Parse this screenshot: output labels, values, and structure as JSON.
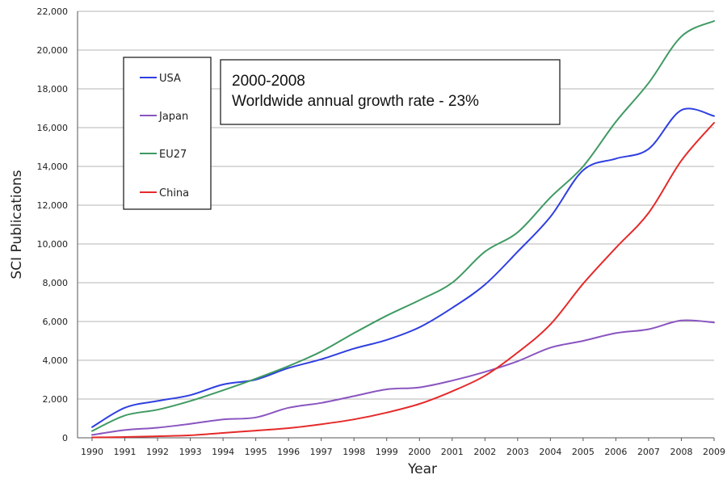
{
  "chart_data": {
    "type": "line",
    "xlabel": "Year",
    "ylabel": "SCI  Publications",
    "ylim": [
      0,
      22000
    ],
    "yticks": [
      0,
      2000,
      4000,
      6000,
      8000,
      10000,
      12000,
      14000,
      16000,
      18000,
      20000,
      22000
    ],
    "ytick_labels": [
      "0",
      "2,000",
      "4,000",
      "6,000",
      "8,000",
      "10,000",
      "12,000",
      "14,000",
      "16,000",
      "18,000",
      "20,000",
      "22,000"
    ],
    "x": [
      1990,
      1991,
      1992,
      1993,
      1994,
      1995,
      1996,
      1997,
      1998,
      1999,
      2000,
      2001,
      2002,
      2003,
      2004,
      2005,
      2006,
      2007,
      2008,
      2009
    ],
    "xtick_labels": [
      "1990",
      "1991",
      "1992",
      "1993",
      "1994",
      "1995",
      "1996",
      "1997",
      "1998",
      "1999",
      "2000",
      "2001",
      "2002",
      "2003",
      "2004",
      "2005",
      "2006",
      "2007",
      "2008",
      "2009"
    ],
    "grid": "horizontal",
    "legend_position": "top-left",
    "series": [
      {
        "name": "USA",
        "color": "#2f3fe0",
        "values": [
          550,
          1550,
          1900,
          2200,
          2750,
          3000,
          3600,
          4050,
          4600,
          5050,
          5700,
          6700,
          7900,
          9600,
          11400,
          13800,
          14400,
          14900,
          16900,
          16600
        ]
      },
      {
        "name": "Japan",
        "color": "#8a55c0",
        "values": [
          150,
          400,
          520,
          720,
          950,
          1050,
          1550,
          1800,
          2150,
          2500,
          2600,
          2950,
          3400,
          3950,
          4650,
          5000,
          5400,
          5600,
          6050,
          5950
        ]
      },
      {
        "name": "EU27",
        "color": "#3f9a62",
        "values": [
          350,
          1150,
          1450,
          1900,
          2450,
          3050,
          3700,
          4450,
          5400,
          6300,
          7100,
          8000,
          9600,
          10600,
          12400,
          14000,
          16300,
          18300,
          20700,
          21500
        ]
      },
      {
        "name": "China",
        "color": "#e52a2a",
        "values": [
          20,
          40,
          80,
          130,
          250,
          370,
          500,
          700,
          950,
          1300,
          1750,
          2400,
          3200,
          4400,
          5850,
          7950,
          9800,
          11600,
          14300,
          16250
        ]
      }
    ],
    "annotation": {
      "line1": "2000-2008",
      "line2": "Worldwide annual growth rate  -  23%"
    },
    "colors": {
      "grid": "#b5b5b5",
      "axis": "#555555"
    }
  }
}
